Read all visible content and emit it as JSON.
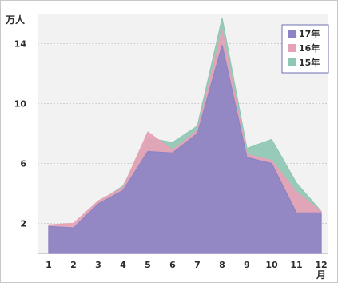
{
  "chart_data": {
    "type": "area",
    "yunit": "万人",
    "xunit": "月",
    "categories": [
      "1",
      "2",
      "3",
      "4",
      "5",
      "6",
      "7",
      "8",
      "9",
      "10",
      "11",
      "12"
    ],
    "ylim": [
      0,
      16
    ],
    "yticks": [
      "2",
      "6",
      "10",
      "14"
    ],
    "grid": true,
    "legend_position": "top-right",
    "series": [
      {
        "name": "15年",
        "color": "#8fc7b4",
        "values": [
          1.8,
          1.7,
          3.4,
          4.5,
          7.7,
          7.4,
          8.5,
          15.7,
          7.0,
          7.6,
          4.7,
          2.8
        ]
      },
      {
        "name": "16年",
        "color": "#e6a2b5",
        "values": [
          1.9,
          2.0,
          3.5,
          4.4,
          8.1,
          6.9,
          8.2,
          14.9,
          6.6,
          6.2,
          4.1,
          2.8
        ]
      },
      {
        "name": "17年",
        "color": "#8c84c6",
        "values": [
          1.8,
          1.7,
          3.3,
          4.2,
          6.8,
          6.7,
          8.0,
          13.9,
          6.4,
          6.0,
          2.7,
          2.7
        ]
      }
    ],
    "legend_order": [
      "17年",
      "16年",
      "15年"
    ]
  }
}
